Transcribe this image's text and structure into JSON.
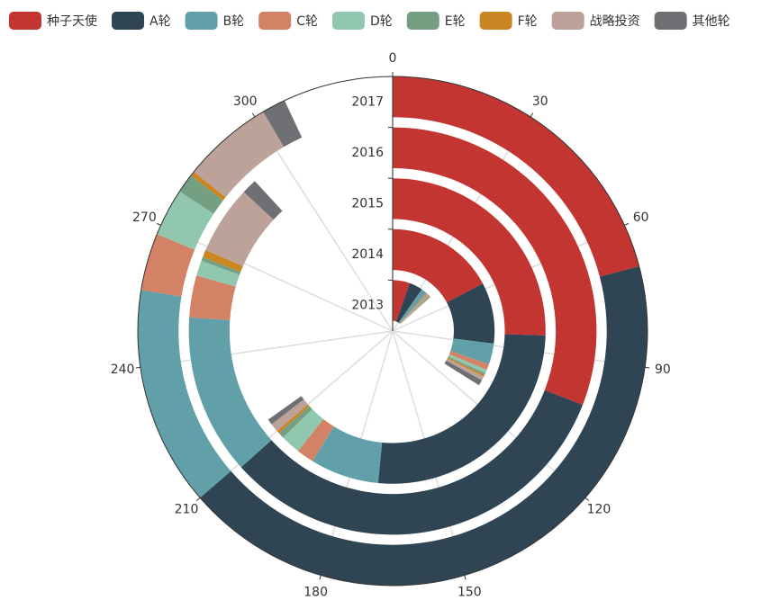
{
  "chart_data": {
    "type": "polar-stacked-bar",
    "categories": [
      "2013",
      "2014",
      "2015",
      "2016",
      "2017"
    ],
    "ylim": [
      0,
      330
    ],
    "yticks": [
      0,
      30,
      60,
      90,
      120,
      150,
      180,
      210,
      240,
      270,
      300
    ],
    "grid": true,
    "legend": "top",
    "series": [
      {
        "name": "种子天使",
        "color": "#c23531",
        "values": [
          18,
          57,
          84,
          102,
          69
        ]
      },
      {
        "name": "A轮",
        "color": "#2f4554",
        "values": [
          14,
          32,
          86,
          107,
          141
        ]
      },
      {
        "name": "B轮",
        "color": "#61a0a8",
        "values": [
          6,
          11,
          24,
          42,
          46
        ]
      },
      {
        "name": "C轮",
        "color": "#d48265",
        "values": [
          2,
          3,
          6,
          11,
          12
        ]
      },
      {
        "name": "D轮",
        "color": "#91c7ae",
        "values": [
          1,
          2,
          7,
          4,
          10
        ]
      },
      {
        "name": "E轮",
        "color": "#749f83",
        "values": [
          1,
          1,
          2,
          1,
          4
        ]
      },
      {
        "name": "F轮",
        "color": "#ca8622",
        "values": [
          0.5,
          1,
          1,
          2,
          1
        ]
      },
      {
        "name": "战略投资",
        "color": "#bda29a",
        "values": [
          1,
          2,
          3,
          18,
          19
        ]
      },
      {
        "name": "其他轮",
        "color": "#6e7074",
        "values": [
          0.5,
          3,
          2,
          4,
          5
        ]
      }
    ]
  }
}
